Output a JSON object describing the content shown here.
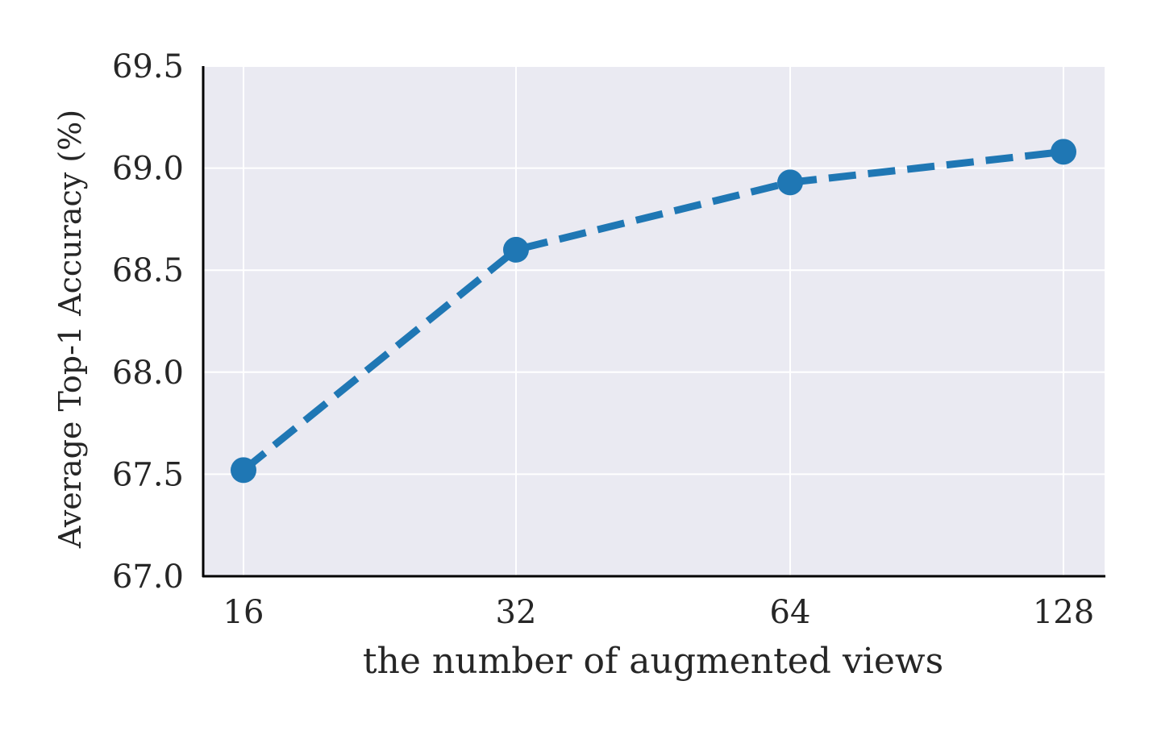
{
  "chart_data": {
    "type": "line",
    "x": [
      "16",
      "32",
      "64",
      "128"
    ],
    "y_ticks": [
      "67.0",
      "67.5",
      "68.0",
      "68.5",
      "69.0",
      "69.5"
    ],
    "series": [
      {
        "values": [
          67.52,
          68.6,
          68.93,
          69.08
        ],
        "color": "#1f77b4",
        "line_style": "dashed",
        "marker": "circle"
      }
    ],
    "xlabel": "the number of augmented views",
    "ylabel": "Average Top-1 Accuracy (%)",
    "ylim": [
      67.0,
      69.5
    ],
    "x_scale": "log2",
    "grid": true,
    "plot_background": "#eaeaf2",
    "grid_color": "#ffffff",
    "axis_color": "#000000"
  }
}
